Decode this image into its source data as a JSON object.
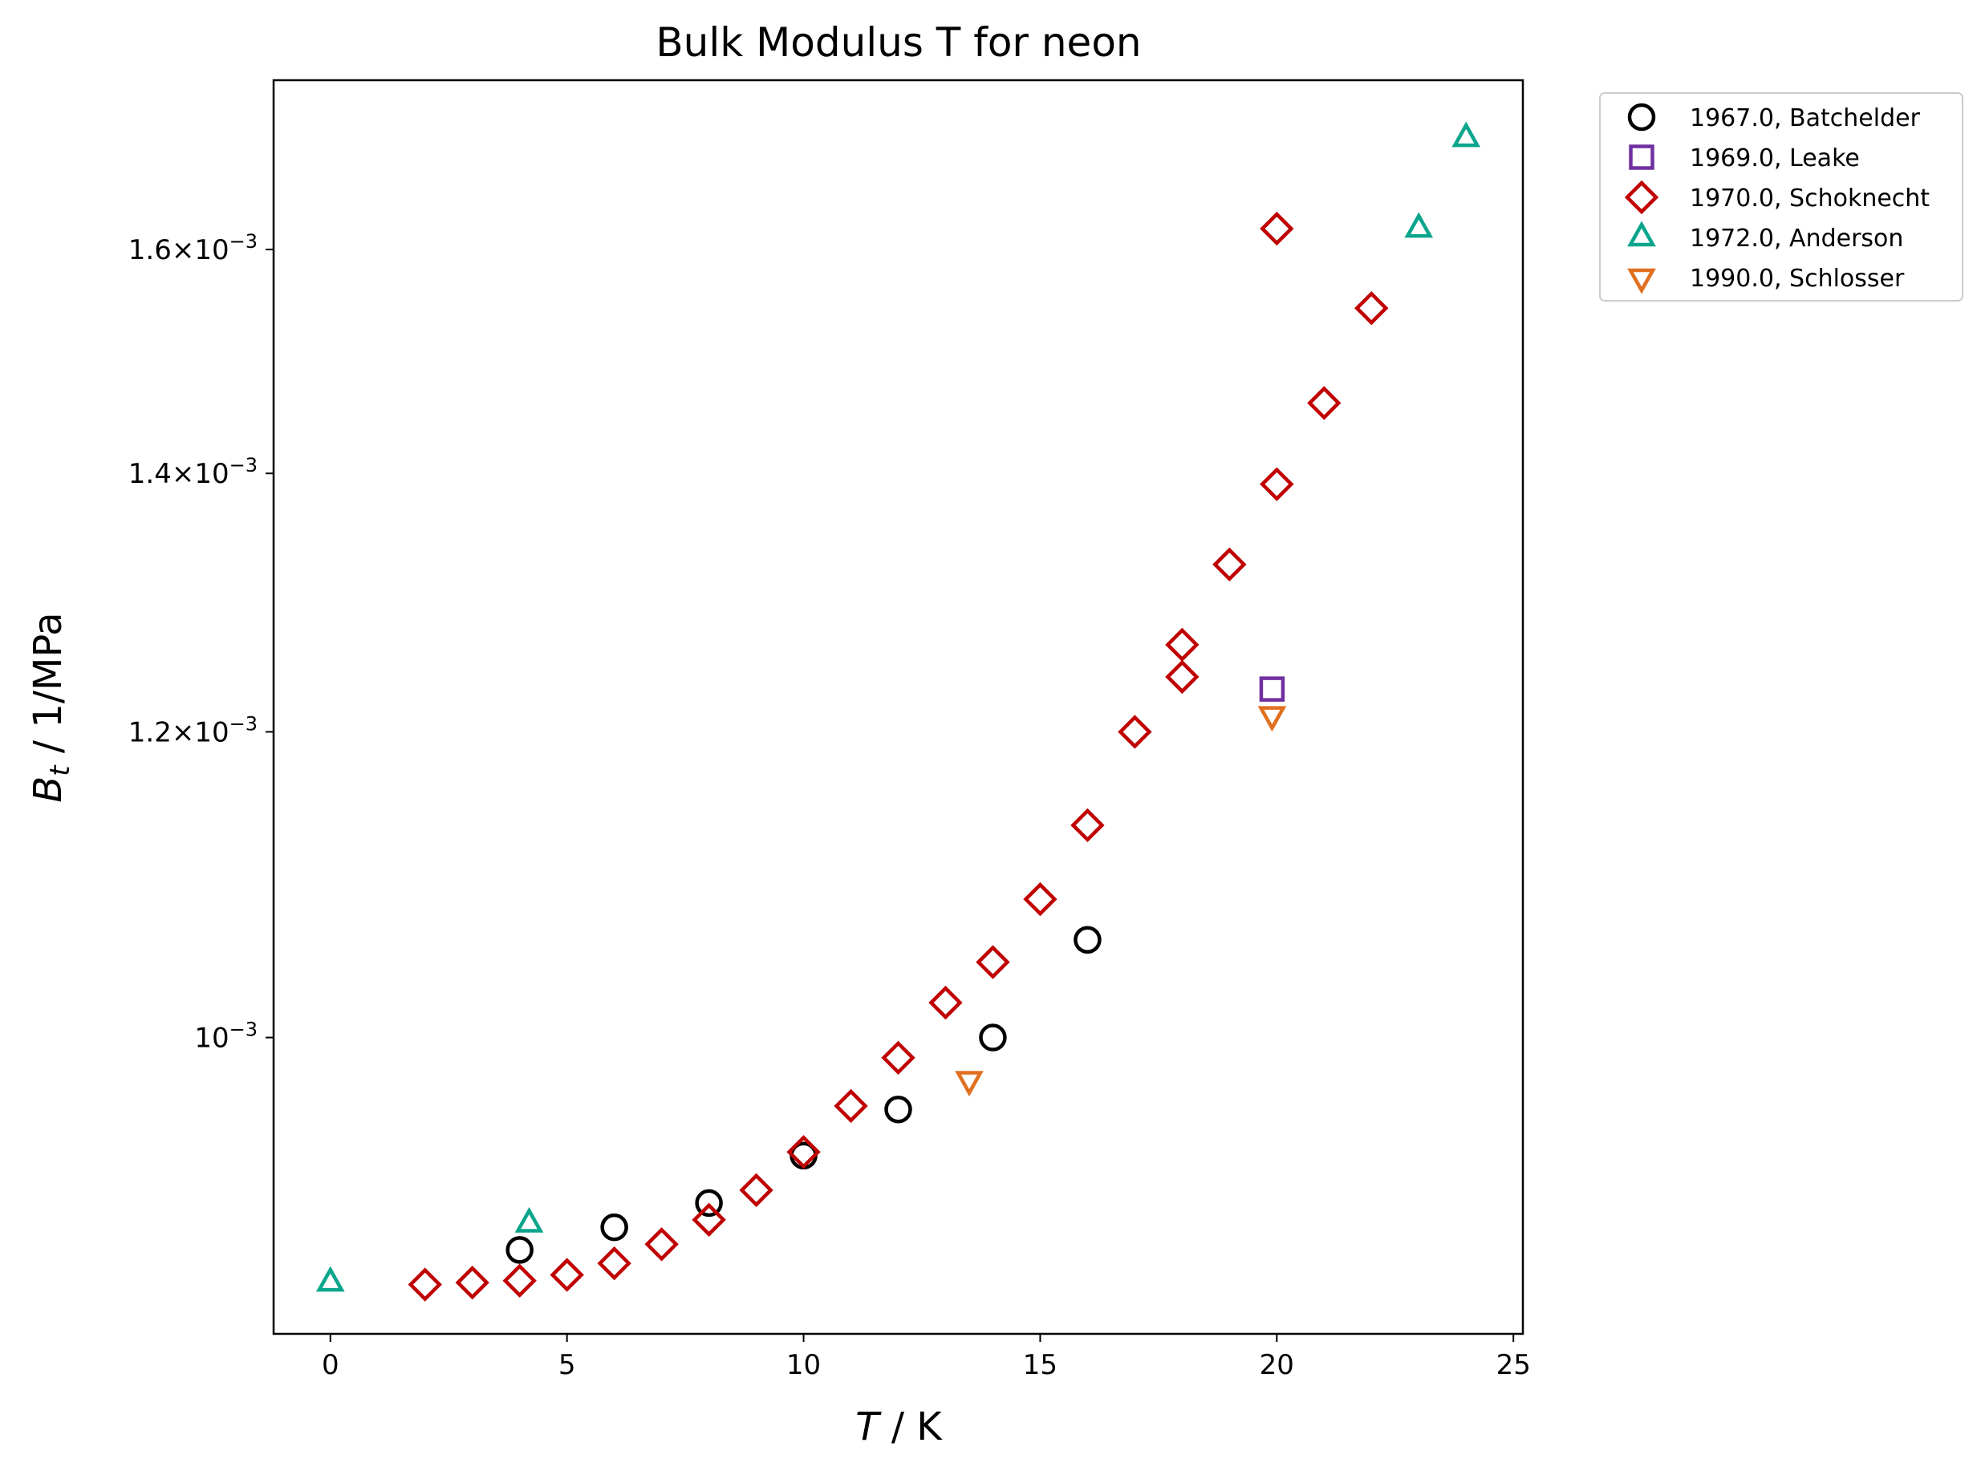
{
  "chart_data": {
    "type": "scatter",
    "title": "Bulk Modulus T for neon",
    "xlabel": {
      "var": "T",
      "unit": " / K"
    },
    "ylabel": {
      "var": "B",
      "sub": "t",
      "unit": " / 1/MPa"
    },
    "xlim": [
      -1.2,
      25.2
    ],
    "ylim": [
      0.000838,
      0.00177
    ],
    "yscale": "log",
    "grid": false,
    "legend_position": "outside-top-right",
    "x_ticks": [
      {
        "value": 0,
        "label": "0"
      },
      {
        "value": 5,
        "label": "5"
      },
      {
        "value": 10,
        "label": "10"
      },
      {
        "value": 15,
        "label": "15"
      },
      {
        "value": 20,
        "label": "20"
      },
      {
        "value": 25,
        "label": "25"
      }
    ],
    "y_ticks": [
      {
        "value": 0.001,
        "mantissa": "",
        "exponent": "−3",
        "label": "10^-3"
      },
      {
        "value": 0.0012,
        "mantissa": "1.2",
        "exponent": "−3",
        "label": "1.2×10^-3"
      },
      {
        "value": 0.0014,
        "mantissa": "1.4",
        "exponent": "−3",
        "label": "1.4×10^-3"
      },
      {
        "value": 0.0016,
        "mantissa": "1.6",
        "exponent": "−3",
        "label": "1.6×10^-3"
      }
    ],
    "series": [
      {
        "name": "1967.0, Batchelder",
        "marker": "circle",
        "color": "#000000",
        "x": [
          4,
          6,
          8,
          10,
          12,
          14,
          16
        ],
        "y": [
          0.000881,
          0.000893,
          0.000906,
          0.000932,
          0.000958,
          0.001,
          0.00106
        ]
      },
      {
        "name": "1969.0, Leake",
        "marker": "square",
        "color": "#7030a0",
        "x": [
          19.9
        ],
        "y": [
          0.001231
        ]
      },
      {
        "name": "1970.0, Schoknecht",
        "marker": "diamond",
        "color": "#c00000",
        "x": [
          2,
          3,
          4,
          5,
          6,
          7,
          8,
          9,
          10,
          11,
          12,
          13,
          14,
          15,
          16,
          17,
          18,
          18,
          19,
          20,
          20,
          21,
          22
        ],
        "y": [
          0.000863,
          0.000864,
          0.000865,
          0.000868,
          0.000874,
          0.000884,
          0.000897,
          0.000913,
          0.000934,
          0.00096,
          0.000988,
          0.001021,
          0.001046,
          0.001086,
          0.001135,
          0.0012,
          0.00124,
          0.001264,
          0.001326,
          0.001391,
          0.00162,
          0.00146,
          0.001545
        ]
      },
      {
        "name": "1972.0, Anderson",
        "marker": "triangle-up",
        "color": "#0aa58c",
        "x": [
          0,
          4.2,
          23,
          24
        ],
        "y": [
          0.000864,
          0.000895,
          0.00162,
          0.00171
        ]
      },
      {
        "name": "1990.0, Schlosser",
        "marker": "triangle-down",
        "color": "#e07020",
        "x": [
          13.5,
          19.9
        ],
        "y": [
          0.000975,
          0.001212
        ]
      }
    ]
  }
}
